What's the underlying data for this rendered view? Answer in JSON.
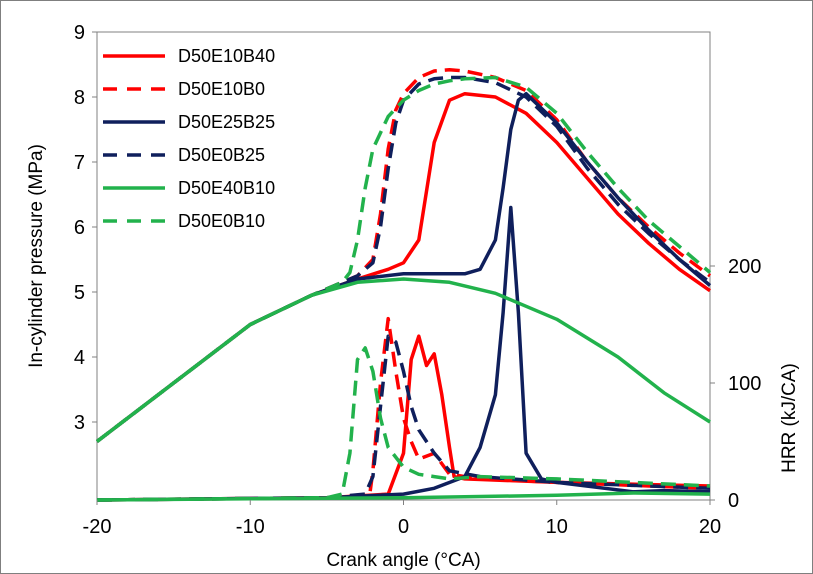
{
  "chart_data": {
    "type": "line",
    "xlabel": "Crank angle (°CA)",
    "ylabel_left": "In-cylinder pressure (MPa)",
    "ylabel_right": "HRR (kJ/CA)",
    "xlim": [
      -20,
      20
    ],
    "x_ticks": [
      -20,
      -10,
      0,
      10,
      20
    ],
    "ylim_left": [
      1.8,
      9
    ],
    "y_ticks_left": [
      3,
      4,
      5,
      6,
      7,
      8,
      9
    ],
    "ylim_right": [
      0,
      400
    ],
    "y_ticks_right": [
      0,
      100,
      200
    ],
    "grid": false,
    "legend_position": "top-left",
    "pressure_series": [
      {
        "name": "D50E10B40",
        "color": "#ff0000",
        "dash": "solid",
        "x": [
          -20,
          -15,
          -10,
          -6,
          -3,
          -1,
          0,
          1,
          2,
          3,
          4,
          6,
          8,
          10,
          12,
          14,
          16,
          18,
          20
        ],
        "y": [
          2.7,
          3.6,
          4.5,
          4.95,
          5.2,
          5.35,
          5.45,
          5.8,
          7.3,
          7.95,
          8.05,
          8.0,
          7.75,
          7.3,
          6.75,
          6.2,
          5.75,
          5.35,
          5.02
        ]
      },
      {
        "name": "D50E10B0",
        "color": "#ff0000",
        "dash": "dashed",
        "x": [
          -20,
          -15,
          -10,
          -6,
          -3,
          -2,
          -1.5,
          -1,
          -0.5,
          0,
          1,
          2,
          3,
          4,
          6,
          8,
          10,
          12,
          14,
          16,
          18,
          20
        ],
        "y": [
          2.7,
          3.6,
          4.5,
          4.95,
          5.25,
          5.5,
          6.2,
          7.2,
          7.8,
          8.05,
          8.3,
          8.4,
          8.42,
          8.4,
          8.3,
          8.1,
          7.65,
          7.0,
          6.45,
          6.0,
          5.6,
          5.25
        ]
      },
      {
        "name": "D50E25B25",
        "color": "#0f1f5c",
        "dash": "solid",
        "x": [
          -20,
          -15,
          -10,
          -6,
          -3,
          0,
          2,
          4,
          5,
          6,
          6.5,
          7,
          7.5,
          8,
          10,
          12,
          14,
          16,
          18,
          20
        ],
        "y": [
          2.7,
          3.6,
          4.5,
          4.95,
          5.2,
          5.28,
          5.28,
          5.28,
          5.35,
          5.8,
          6.6,
          7.5,
          7.95,
          8.05,
          7.6,
          7.0,
          6.45,
          5.95,
          5.5,
          5.1
        ]
      },
      {
        "name": "D50E0B25",
        "color": "#0f1f5c",
        "dash": "dashed",
        "x": [
          -20,
          -15,
          -10,
          -6,
          -3,
          -2,
          -1.5,
          -1,
          -0.5,
          0,
          1,
          2,
          3,
          4,
          6,
          8,
          10,
          12,
          14,
          16,
          18,
          20
        ],
        "y": [
          2.7,
          3.6,
          4.5,
          4.95,
          5.25,
          5.45,
          6.0,
          6.9,
          7.6,
          7.95,
          8.2,
          8.28,
          8.3,
          8.3,
          8.22,
          8.0,
          7.55,
          6.9,
          6.35,
          5.9,
          5.5,
          5.15
        ]
      },
      {
        "name": "D50E40B10",
        "color": "#22b24c",
        "dash": "solid",
        "x": [
          -20,
          -15,
          -10,
          -6,
          -3,
          0,
          3,
          6,
          10,
          14,
          17,
          20
        ],
        "y": [
          2.7,
          3.6,
          4.5,
          4.95,
          5.15,
          5.2,
          5.15,
          4.98,
          4.58,
          4.0,
          3.45,
          3.0
        ]
      },
      {
        "name": "D50E0B10",
        "color": "#22b24c",
        "dash": "dashed",
        "x": [
          -20,
          -15,
          -10,
          -6,
          -4,
          -3.5,
          -3,
          -2.5,
          -2,
          -1,
          0,
          1,
          2,
          3,
          4,
          6,
          8,
          10,
          12,
          14,
          16,
          18,
          20
        ],
        "y": [
          2.7,
          3.6,
          4.5,
          4.95,
          5.15,
          5.3,
          5.8,
          6.6,
          7.2,
          7.7,
          7.95,
          8.1,
          8.2,
          8.25,
          8.28,
          8.3,
          8.15,
          7.75,
          7.15,
          6.6,
          6.1,
          5.7,
          5.3
        ]
      }
    ],
    "hrr_series": [
      {
        "name": "D50E10B40",
        "color": "#ff0000",
        "dash": "solid",
        "x": [
          -20,
          -5,
          -1,
          0,
          0.5,
          1,
          1.5,
          2,
          2.5,
          3,
          3.3,
          4,
          10,
          20
        ],
        "y": [
          0,
          2,
          5,
          40,
          120,
          140,
          115,
          125,
          90,
          45,
          20,
          18,
          15,
          12
        ]
      },
      {
        "name": "D50E10B0",
        "color": "#ff0000",
        "dash": "dashed",
        "x": [
          -20,
          -5,
          -2.2,
          -2,
          -1.5,
          -1,
          -0.5,
          0,
          0.5,
          1,
          2,
          3,
          5,
          10,
          20
        ],
        "y": [
          0,
          2,
          5,
          25,
          100,
          155,
          110,
          70,
          50,
          35,
          40,
          22,
          18,
          15,
          10
        ]
      },
      {
        "name": "D50E25B25",
        "color": "#0f1f5c",
        "dash": "solid",
        "x": [
          -20,
          -5,
          0,
          2,
          4,
          5,
          6,
          6.5,
          7,
          7.5,
          8,
          9,
          10,
          15,
          17,
          20
        ],
        "y": [
          0,
          2,
          5,
          10,
          20,
          45,
          90,
          160,
          250,
          160,
          40,
          18,
          15,
          7,
          8,
          7
        ]
      },
      {
        "name": "D50E0B25",
        "color": "#0f1f5c",
        "dash": "dashed",
        "x": [
          -20,
          -5,
          -2.5,
          -2,
          -1.5,
          -1,
          -0.5,
          0,
          0.5,
          1,
          1.5,
          2,
          3,
          5,
          10,
          20
        ],
        "y": [
          0,
          2,
          5,
          20,
          80,
          140,
          135,
          110,
          80,
          60,
          50,
          40,
          25,
          20,
          15,
          10
        ]
      },
      {
        "name": "D50E40B10",
        "color": "#22b24c",
        "dash": "solid",
        "x": [
          -20,
          -10,
          0,
          5,
          10,
          15,
          20
        ],
        "y": [
          0,
          1,
          2,
          3,
          4,
          6,
          5
        ]
      },
      {
        "name": "D50E0B10",
        "color": "#22b24c",
        "dash": "dashed",
        "x": [
          -20,
          -5,
          -4,
          -3.5,
          -3,
          -2.5,
          -2,
          -1.5,
          -1,
          0,
          1,
          2,
          3,
          5,
          10,
          20
        ],
        "y": [
          0,
          2,
          5,
          40,
          120,
          130,
          110,
          70,
          45,
          28,
          22,
          20,
          18,
          20,
          18,
          12
        ]
      }
    ]
  }
}
